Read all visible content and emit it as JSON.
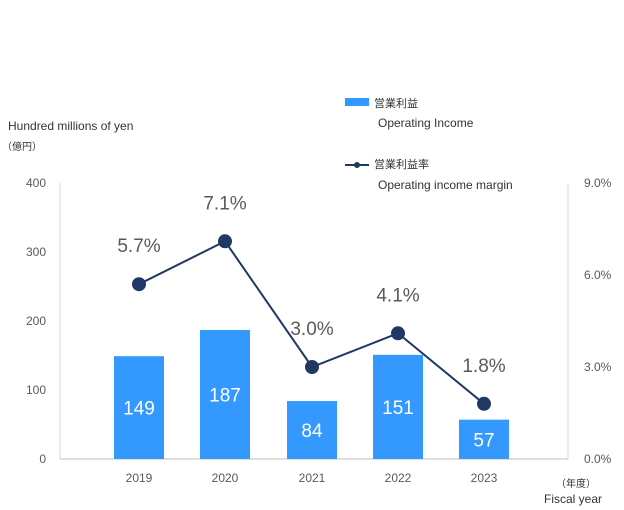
{
  "chart_data": {
    "type": "bar",
    "categories": [
      "2019",
      "2020",
      "2021",
      "2022",
      "2023"
    ],
    "series": [
      {
        "name": "Operating Income",
        "name_jp": "営業利益",
        "kind": "bar",
        "axis": "left",
        "values": [
          149,
          187,
          84,
          151,
          57
        ],
        "labels": [
          "149",
          "187",
          "84",
          "151",
          "57"
        ],
        "color": "#3399FF"
      },
      {
        "name": "Operating income margin",
        "name_jp": "営業利益率",
        "kind": "line",
        "axis": "right",
        "values": [
          5.7,
          7.1,
          3.0,
          4.1,
          1.8
        ],
        "labels": [
          "5.7%",
          "7.1%",
          "3.0%",
          "4.1%",
          "1.8%"
        ],
        "color": "#1F3864"
      }
    ],
    "ylabel": "Hundred millions of yen",
    "ylabel_jp": "（億円）",
    "xlabel": "Fiscal year",
    "xlabel_jp": "（年度）",
    "ylim": [
      0,
      400
    ],
    "yticks": [
      0,
      100,
      200,
      300,
      400
    ],
    "y2lim": [
      0,
      9
    ],
    "y2ticks": [
      "0.0%",
      "3.0%",
      "6.0%",
      "9.0%"
    ],
    "y2tick_values": [
      0,
      3,
      6,
      9
    ],
    "legend_position": "top-right",
    "grid": false
  }
}
